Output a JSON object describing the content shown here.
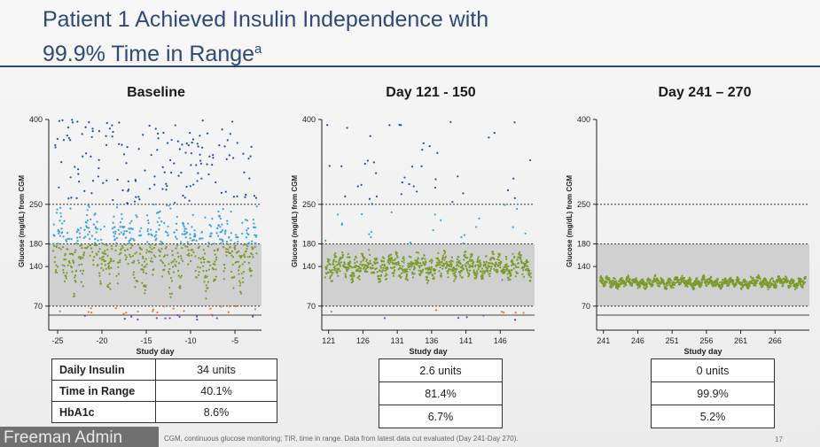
{
  "slide": {
    "title_line1": "Patient 1 Achieved Insulin Independence with",
    "title_line2": "99.9% Time in Range",
    "title_superscript": "a",
    "footnote": "CGM, continuous glucose monitoring; TIR, time in range. Data from latest data cut evaluated (Day 241-Day 270).",
    "presenter_name": "Freeman Admin",
    "page_number": "17"
  },
  "chart_data": [
    {
      "type": "scatter",
      "title": "Baseline",
      "xlabel": "Study day",
      "ylabel": "Glucose (mg/dL) from CGM",
      "xlim": [
        -26,
        -2
      ],
      "xticks": [
        -25,
        -20,
        -15,
        -10,
        -5
      ],
      "ylim": [
        40,
        400
      ],
      "yticks": [
        70,
        140,
        180,
        250,
        400
      ],
      "target_range": [
        70,
        180
      ],
      "reference_lines": [
        54,
        70,
        180,
        250
      ],
      "profile": {
        "mean": 165,
        "spread": 75,
        "high_spike_rate": 0.25,
        "low_rate": 0.04
      },
      "summary": {
        "daily_insulin": "34 units",
        "time_in_range": "40.1%",
        "hba1c": "8.6%"
      }
    },
    {
      "type": "scatter",
      "title": "Day 121 - 150",
      "xlabel": "Study day",
      "ylabel": "Glucose (mg/dL) from CGM",
      "xlim": [
        120,
        151
      ],
      "xticks": [
        121,
        126,
        131,
        136,
        141,
        146
      ],
      "ylim": [
        40,
        400
      ],
      "yticks": [
        70,
        140,
        180,
        250,
        400
      ],
      "target_range": [
        70,
        180
      ],
      "reference_lines": [
        54,
        70,
        180,
        250
      ],
      "profile": {
        "mean": 140,
        "spread": 28,
        "high_spike_rate": 0.08,
        "low_rate": 0.01
      },
      "summary": {
        "daily_insulin": "2.6 units",
        "time_in_range": "81.4%",
        "hba1c": "6.7%"
      }
    },
    {
      "type": "scatter",
      "title": "Day 241 – 270",
      "xlabel": "Study day",
      "ylabel": "Glucose (mg/dL) from CGM",
      "xlim": [
        240,
        271
      ],
      "xticks": [
        241,
        246,
        251,
        256,
        261,
        266
      ],
      "ylim": [
        40,
        400
      ],
      "yticks": [
        70,
        140,
        180,
        250,
        400
      ],
      "target_range": [
        70,
        180
      ],
      "reference_lines": [
        54,
        70,
        180,
        250
      ],
      "profile": {
        "mean": 112,
        "spread": 12,
        "high_spike_rate": 0.0,
        "low_rate": 0.0
      },
      "summary": {
        "daily_insulin": "0 units",
        "time_in_range": "99.9%",
        "hba1c": "5.2%"
      }
    }
  ],
  "table": {
    "row_labels": [
      "Daily Insulin",
      "Time in Range",
      "HbA1c"
    ]
  },
  "colors": {
    "title": "#2f4a78",
    "in_range": "#7a9a2a",
    "high": "#3aa0dc",
    "very_high": "#1f4f9c",
    "low": "#e07b30",
    "very_low": "#7a3fb5",
    "target_band": "#d0d0d0"
  }
}
